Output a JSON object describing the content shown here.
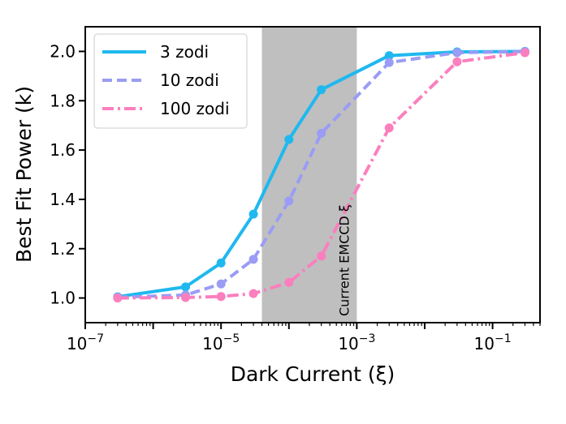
{
  "chart_data": {
    "type": "line",
    "title": "",
    "xlabel": "Dark Current (ξ)",
    "ylabel": "Best Fit Power (k)",
    "xscale": "log",
    "xlim": [
      1e-07,
      0.5
    ],
    "ylim": [
      0.9,
      2.1
    ],
    "x_tick_labels": [
      {
        "value": 1e-07,
        "base": "10",
        "exp": "−7"
      },
      {
        "value": 1e-05,
        "base": "10",
        "exp": "−5"
      },
      {
        "value": 0.001,
        "base": "10",
        "exp": "−3"
      },
      {
        "value": 0.1,
        "base": "10",
        "exp": "−1"
      }
    ],
    "y_ticks": [
      1.0,
      1.2,
      1.4,
      1.6,
      1.8,
      2.0
    ],
    "y_tick_labels": [
      "1.0",
      "1.2",
      "1.4",
      "1.6",
      "1.8",
      "2.0"
    ],
    "grid": false,
    "legend_position": "top-left",
    "shaded_region": {
      "x_start": 4e-05,
      "x_end": 0.001,
      "color": "#bfbfbf"
    },
    "annotation": {
      "text": "Current EMCCD ξ",
      "x": 0.0007,
      "orientation": "vertical"
    },
    "x": [
      3e-07,
      3e-06,
      1e-05,
      3e-05,
      0.0001,
      0.0003,
      0.003,
      0.03,
      0.3
    ],
    "series": [
      {
        "name": "3 zodi",
        "color": "#1fb8ef",
        "dash": "solid",
        "values": [
          1.005,
          1.045,
          1.142,
          1.34,
          1.643,
          1.845,
          1.983,
          1.998,
          2.0
        ]
      },
      {
        "name": "10 zodi",
        "color": "#9a9cf5",
        "dash": "dashed",
        "values": [
          1.003,
          1.012,
          1.057,
          1.157,
          1.393,
          1.668,
          1.955,
          1.995,
          1.999
        ]
      },
      {
        "name": "100 zodi",
        "color": "#fb7fbe",
        "dash": "dashdot",
        "values": [
          1.0,
          1.002,
          1.006,
          1.018,
          1.063,
          1.17,
          1.69,
          1.958,
          1.995
        ]
      }
    ]
  }
}
